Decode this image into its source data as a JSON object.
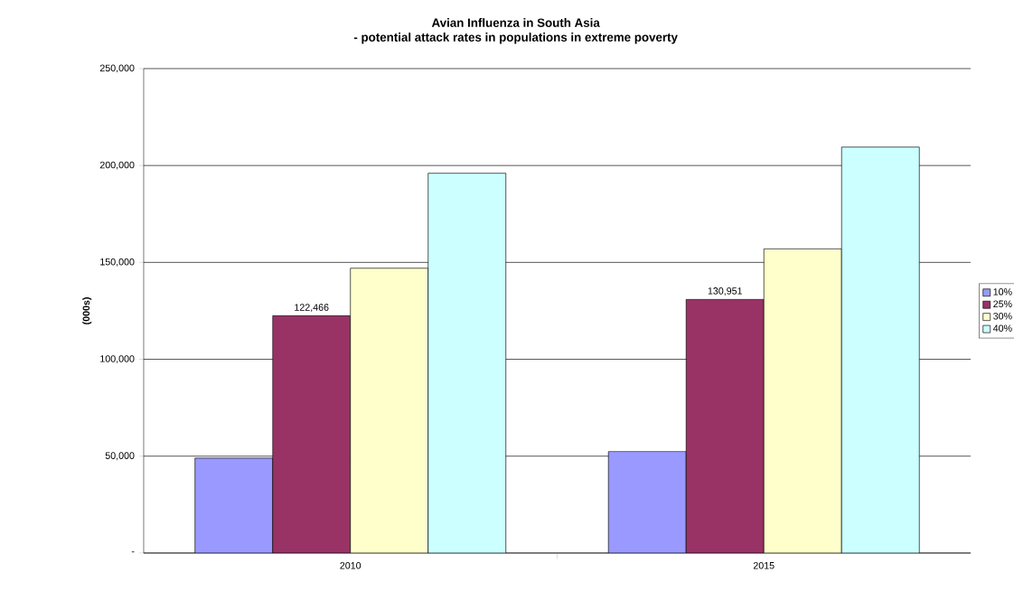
{
  "chart_data": {
    "type": "bar",
    "title": "Avian Influenza in South Asia",
    "subtitle": "- potential attack rates in populations in extreme poverty",
    "ylabel": "(000s)",
    "categories": [
      "2010",
      "2015"
    ],
    "series": [
      {
        "name": "10%",
        "color": "#9999ff",
        "values": [
          49000,
          52400
        ]
      },
      {
        "name": "25%",
        "color": "#993366",
        "values": [
          122466,
          130951
        ],
        "value_labels": [
          "122,466",
          "130,951"
        ]
      },
      {
        "name": "30%",
        "color": "#ffffcc",
        "values": [
          147000,
          157000
        ]
      },
      {
        "name": "40%",
        "color": "#ccffff",
        "values": [
          196000,
          209500
        ]
      }
    ],
    "ylim": [
      0,
      250000
    ],
    "yticks": [
      {
        "value": 0,
        "label": "-"
      },
      {
        "value": 50000,
        "label": "50,000"
      },
      {
        "value": 100000,
        "label": "100,000"
      },
      {
        "value": 150000,
        "label": "150,000"
      },
      {
        "value": 200000,
        "label": "200,000"
      },
      {
        "value": 250000,
        "label": "250,000"
      }
    ],
    "grid": "y",
    "legend": "right"
  }
}
